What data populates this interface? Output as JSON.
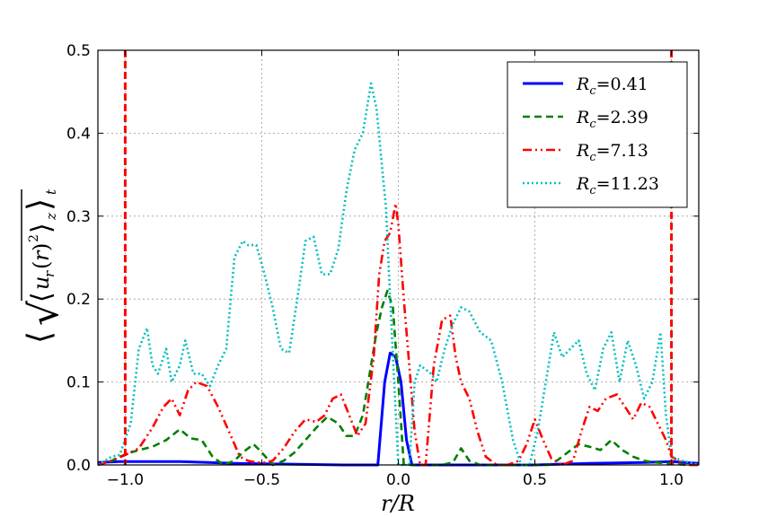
{
  "chart_data": {
    "type": "line",
    "title": "",
    "xlabel": "r/R",
    "ylabel": "⟨√⟨u_r(r)²⟩_z⟩_t",
    "xlim": [
      -1.1,
      1.1
    ],
    "ylim": [
      0,
      0.5
    ],
    "grid": true,
    "legend_position": "top-right",
    "x_ticks": [
      -1.0,
      -0.5,
      0.0,
      0.5,
      1.0
    ],
    "x_tick_labels": [
      "−1.0",
      "−0.5",
      "0.0",
      "0.5",
      "1.0"
    ],
    "y_ticks": [
      0.0,
      0.1,
      0.2,
      0.3,
      0.4,
      0.5
    ],
    "y_tick_labels": [
      "0.0",
      "0.1",
      "0.2",
      "0.3",
      "0.4",
      "0.5"
    ],
    "vertical_lines": [
      {
        "x": -1.0,
        "color": "#ff0000",
        "style": "dashed"
      },
      {
        "x": 1.0,
        "color": "#ff0000",
        "style": "dashed"
      }
    ],
    "series": [
      {
        "name": "R_c = 0.41",
        "legend_sub": "c",
        "legend_value": "=0.41",
        "color": "#0000ff",
        "style": "solid",
        "x": [
          -1.1,
          -1.02,
          -0.9,
          -0.8,
          -0.6,
          -0.4,
          -0.2,
          -0.1,
          -0.075,
          -0.05,
          -0.03,
          -0.01,
          0.01,
          0.03,
          0.05,
          0.07,
          0.1,
          0.3,
          0.5,
          0.7,
          0.9,
          1.0,
          1.1
        ],
        "y": [
          0.003,
          0.004,
          0.004,
          0.004,
          0.002,
          0.001,
          0.0,
          0.0,
          0.0,
          0.1,
          0.135,
          0.13,
          0.1,
          0.03,
          0.0,
          0.0,
          0.0,
          0.0,
          0.0,
          0.002,
          0.003,
          0.004,
          0.002
        ]
      },
      {
        "name": "R_c = 2.39",
        "legend_sub": "c",
        "legend_value": "=2.39",
        "color": "#008000",
        "style": "dashed",
        "x": [
          -1.1,
          -1.05,
          -1.02,
          -0.98,
          -0.95,
          -0.9,
          -0.85,
          -0.8,
          -0.76,
          -0.72,
          -0.68,
          -0.64,
          -0.6,
          -0.57,
          -0.53,
          -0.5,
          -0.46,
          -0.42,
          -0.38,
          -0.34,
          -0.3,
          -0.26,
          -0.22,
          -0.19,
          -0.16,
          -0.13,
          -0.1,
          -0.08,
          -0.06,
          -0.04,
          -0.02,
          0.0,
          0.02,
          0.05,
          0.08,
          0.12,
          0.16,
          0.2,
          0.23,
          0.26,
          0.3,
          0.35,
          0.4,
          0.45,
          0.48,
          0.51,
          0.55,
          0.58,
          0.62,
          0.66,
          0.7,
          0.74,
          0.78,
          0.82,
          0.86,
          0.9,
          0.94,
          0.98,
          1.02,
          1.06,
          1.1
        ],
        "y": [
          0.0,
          0.005,
          0.01,
          0.015,
          0.018,
          0.022,
          0.03,
          0.043,
          0.032,
          0.03,
          0.01,
          0.0,
          0.005,
          0.015,
          0.025,
          0.015,
          0.0,
          0.005,
          0.015,
          0.03,
          0.045,
          0.058,
          0.05,
          0.035,
          0.035,
          0.06,
          0.12,
          0.16,
          0.19,
          0.21,
          0.19,
          0.1,
          0.0,
          0.0,
          0.0,
          0.0,
          0.0,
          0.003,
          0.02,
          0.005,
          0.0,
          0.0,
          0.0,
          0.0,
          0.0,
          0.0,
          0.0,
          0.005,
          0.015,
          0.025,
          0.022,
          0.018,
          0.03,
          0.018,
          0.01,
          0.005,
          0.003,
          0.002,
          0.001,
          0.0,
          0.0
        ]
      },
      {
        "name": "R_c = 7.13",
        "legend_sub": "c",
        "legend_value": "=7.13",
        "color": "#ff0000",
        "style": "dashdot",
        "x": [
          -1.1,
          -1.05,
          -1.0,
          -0.95,
          -0.9,
          -0.86,
          -0.83,
          -0.8,
          -0.77,
          -0.74,
          -0.7,
          -0.66,
          -0.62,
          -0.58,
          -0.55,
          -0.52,
          -0.49,
          -0.46,
          -0.42,
          -0.38,
          -0.34,
          -0.3,
          -0.27,
          -0.24,
          -0.21,
          -0.18,
          -0.15,
          -0.12,
          -0.09,
          -0.07,
          -0.05,
          -0.03,
          -0.01,
          0.0,
          0.02,
          0.04,
          0.06,
          0.08,
          0.1,
          0.13,
          0.16,
          0.19,
          0.21,
          0.23,
          0.26,
          0.29,
          0.32,
          0.36,
          0.4,
          0.44,
          0.47,
          0.5,
          0.53,
          0.56,
          0.6,
          0.64,
          0.67,
          0.7,
          0.73,
          0.76,
          0.8,
          0.83,
          0.86,
          0.89,
          0.92,
          0.95,
          0.98,
          1.0,
          1.05,
          1.1
        ],
        "y": [
          0.0,
          0.005,
          0.012,
          0.02,
          0.045,
          0.07,
          0.08,
          0.06,
          0.09,
          0.1,
          0.095,
          0.07,
          0.04,
          0.01,
          0.005,
          0.003,
          0.003,
          0.005,
          0.02,
          0.04,
          0.055,
          0.052,
          0.06,
          0.08,
          0.085,
          0.06,
          0.035,
          0.05,
          0.13,
          0.23,
          0.27,
          0.28,
          0.315,
          0.29,
          0.2,
          0.12,
          0.04,
          0.0,
          0.0,
          0.12,
          0.175,
          0.18,
          0.13,
          0.1,
          0.08,
          0.04,
          0.01,
          0.0,
          0.0,
          0.005,
          0.025,
          0.055,
          0.03,
          0.008,
          0.0,
          0.005,
          0.04,
          0.07,
          0.065,
          0.08,
          0.085,
          0.07,
          0.055,
          0.075,
          0.07,
          0.05,
          0.03,
          0.01,
          0.0,
          0.0
        ]
      },
      {
        "name": "R_c = 11.23",
        "legend_sub": "c",
        "legend_value": "=11.23",
        "color": "#00bfbf",
        "style": "dotted",
        "x": [
          -1.1,
          -1.05,
          -1.02,
          -0.98,
          -0.95,
          -0.92,
          -0.9,
          -0.88,
          -0.85,
          -0.83,
          -0.8,
          -0.78,
          -0.75,
          -0.72,
          -0.69,
          -0.66,
          -0.63,
          -0.6,
          -0.57,
          -0.55,
          -0.52,
          -0.49,
          -0.46,
          -0.43,
          -0.4,
          -0.37,
          -0.34,
          -0.31,
          -0.28,
          -0.25,
          -0.22,
          -0.19,
          -0.16,
          -0.13,
          -0.1,
          -0.08,
          -0.06,
          -0.045,
          -0.03,
          -0.015,
          0.0,
          0.02,
          0.04,
          0.06,
          0.08,
          0.1,
          0.12,
          0.14,
          0.17,
          0.2,
          0.23,
          0.26,
          0.3,
          0.34,
          0.38,
          0.42,
          0.45,
          0.48,
          0.51,
          0.54,
          0.57,
          0.6,
          0.63,
          0.66,
          0.69,
          0.72,
          0.75,
          0.78,
          0.81,
          0.84,
          0.87,
          0.9,
          0.93,
          0.96,
          0.98,
          1.0,
          1.04,
          1.1
        ],
        "y": [
          0.0,
          0.01,
          0.012,
          0.05,
          0.14,
          0.165,
          0.12,
          0.11,
          0.14,
          0.1,
          0.12,
          0.15,
          0.11,
          0.11,
          0.095,
          0.12,
          0.14,
          0.25,
          0.27,
          0.265,
          0.265,
          0.23,
          0.19,
          0.14,
          0.135,
          0.2,
          0.27,
          0.275,
          0.23,
          0.23,
          0.26,
          0.33,
          0.38,
          0.4,
          0.46,
          0.43,
          0.36,
          0.31,
          0.2,
          0.1,
          0.0,
          0.0,
          0.0,
          0.1,
          0.12,
          0.115,
          0.11,
          0.1,
          0.14,
          0.17,
          0.19,
          0.185,
          0.16,
          0.15,
          0.1,
          0.03,
          0.0,
          0.0,
          0.04,
          0.1,
          0.16,
          0.13,
          0.14,
          0.15,
          0.11,
          0.09,
          0.14,
          0.16,
          0.1,
          0.15,
          0.12,
          0.08,
          0.1,
          0.16,
          0.06,
          0.01,
          0.005,
          0.0
        ]
      }
    ]
  }
}
